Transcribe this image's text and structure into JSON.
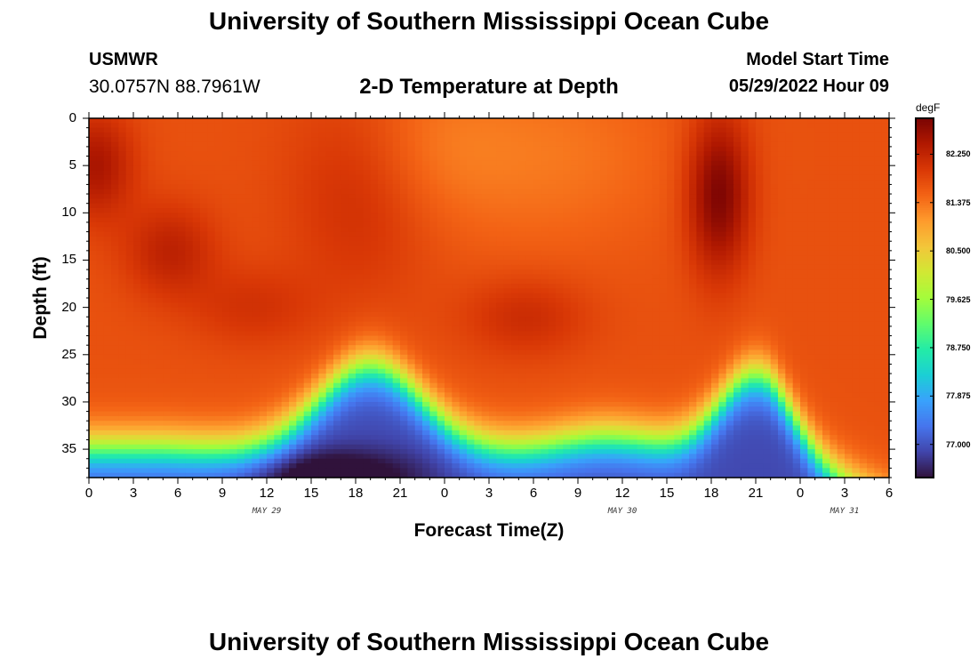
{
  "header": {
    "title": "University of Southern Mississippi Ocean Cube",
    "station_id": "USMWR",
    "station_coords": "30.0757N  88.7961W",
    "subtitle": "2-D Temperature at Depth",
    "model_start_label": "Model Start Time",
    "model_start_value": "05/29/2022 Hour 09"
  },
  "footer": {
    "title": "University of Southern Mississippi Ocean Cube"
  },
  "chart_data": {
    "type": "heatmap",
    "xlabel": "Forecast Time(Z)",
    "ylabel": "Depth (ft)",
    "x_tick_labels": [
      "0",
      "3",
      "6",
      "9",
      "12",
      "15",
      "18",
      "21",
      "0",
      "3",
      "6",
      "9",
      "12",
      "15",
      "18",
      "21",
      "0",
      "3",
      "6"
    ],
    "x_range_hours": [
      0,
      54
    ],
    "day_labels": [
      {
        "label": "MAY 29",
        "hour": 12
      },
      {
        "label": "MAY 30",
        "hour": 36
      },
      {
        "label": "MAY 31",
        "hour": 51
      }
    ],
    "y_ticks": [
      0,
      5,
      10,
      15,
      20,
      25,
      30,
      35
    ],
    "ylim": [
      0,
      38
    ],
    "y_inverted": true,
    "colorbar": {
      "unit": "degF",
      "range": [
        76.4,
        82.9
      ],
      "ticks": [
        "82.250",
        "81.375",
        "80.500",
        "79.625",
        "78.750",
        "77.875",
        "77.000"
      ],
      "tick_values": [
        82.25,
        81.375,
        80.5,
        79.625,
        78.75,
        77.875,
        77.0
      ],
      "colors": [
        "#30123b",
        "#4145ab",
        "#4675ed",
        "#39a2fc",
        "#1bcfd4",
        "#24eca6",
        "#61fc6c",
        "#a4fc3b",
        "#d1e834",
        "#f3c63a",
        "#fe9b2d",
        "#f36315",
        "#d93806",
        "#b11901",
        "#7a0403"
      ]
    },
    "background_temp": 81.7,
    "thermocline_base_depth": 24,
    "thermocline_dip_depth": 32,
    "thermocline_troughs": [
      {
        "hour": 19,
        "depth": 23,
        "width_hours": 3.5
      },
      {
        "hour": 45,
        "depth": 24,
        "width_hours": 2.5
      }
    ],
    "thermocline_dips": [
      {
        "hour": 35,
        "depth": 29,
        "width_hours": 3.2
      }
    ],
    "thermocline_steps": [
      {
        "from_hour": 5,
        "to_hour": 10,
        "from_depth": 23,
        "to_depth": 24
      },
      {
        "from_hour": 46,
        "to_hour": 54,
        "from_depth": 0,
        "to_depth": 14
      }
    ],
    "thermocline_width_ft": 5,
    "deep_temp": 76.9,
    "hot_spots": [
      {
        "hour": 0.5,
        "depth": 5,
        "dt": 0.8,
        "spread_hours": 1.8,
        "spread_ft": 4
      },
      {
        "hour": 5.5,
        "depth": 14,
        "dt": 0.6,
        "spread_hours": 2.2,
        "spread_ft": 3.5
      },
      {
        "hour": 11,
        "depth": 20,
        "dt": 0.35,
        "spread_hours": 3,
        "spread_ft": 3
      },
      {
        "hour": 18.5,
        "depth": 7,
        "dt": 0.5,
        "spread_hours": 3.5,
        "spread_ft": 8
      },
      {
        "hour": 29.5,
        "depth": 21,
        "dt": 0.45,
        "spread_hours": 3,
        "spread_ft": 3
      },
      {
        "hour": 42.5,
        "depth": 8,
        "dt": 1.2,
        "spread_hours": 1.5,
        "spread_ft": 6
      }
    ],
    "cool_spots": [
      {
        "hour": 22,
        "depth": 3,
        "dt": -0.35,
        "spread_hours": 4,
        "spread_ft": 6
      },
      {
        "hour": 31,
        "depth": 4,
        "dt": -0.35,
        "spread_hours": 6,
        "spread_ft": 7
      }
    ],
    "cold_pool": {
      "hour": 16.5,
      "depth": 38,
      "dt": -0.9,
      "spread_hours": 4,
      "spread_ft": 2
    }
  }
}
